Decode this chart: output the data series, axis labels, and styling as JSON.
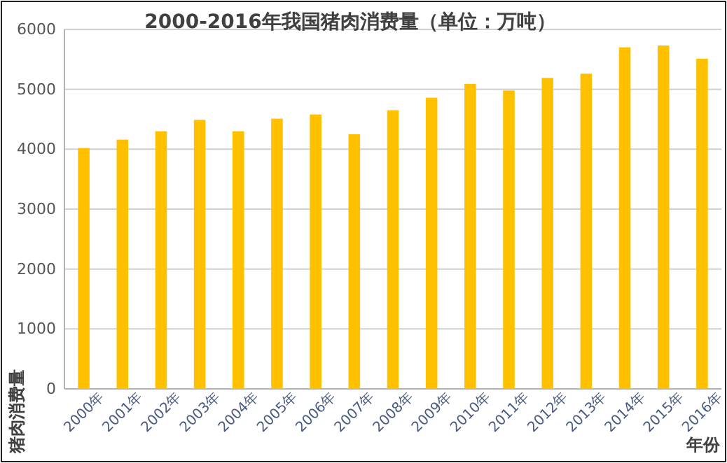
{
  "chart_data": {
    "type": "bar",
    "title": "2000-2016年我国猪肉消费量（单位：万吨）",
    "xlabel": "年份",
    "ylabel": "猪肉消费量",
    "categories": [
      "2000年",
      "2001年",
      "2002年",
      "2003年",
      "2004年",
      "2005年",
      "2006年",
      "2007年",
      "2008年",
      "2009年",
      "2010年",
      "2011年",
      "2012年",
      "2013年",
      "2014年",
      "2015年",
      "2016年"
    ],
    "values": [
      4020,
      4160,
      4300,
      4490,
      4300,
      4510,
      4580,
      4250,
      4650,
      4860,
      5090,
      4980,
      5190,
      5260,
      5700,
      5730,
      5510
    ],
    "color": "#ffc000",
    "ylim": [
      0,
      6000
    ],
    "yticks": [
      0,
      1000,
      2000,
      3000,
      4000,
      5000,
      6000
    ],
    "grid": "y"
  }
}
